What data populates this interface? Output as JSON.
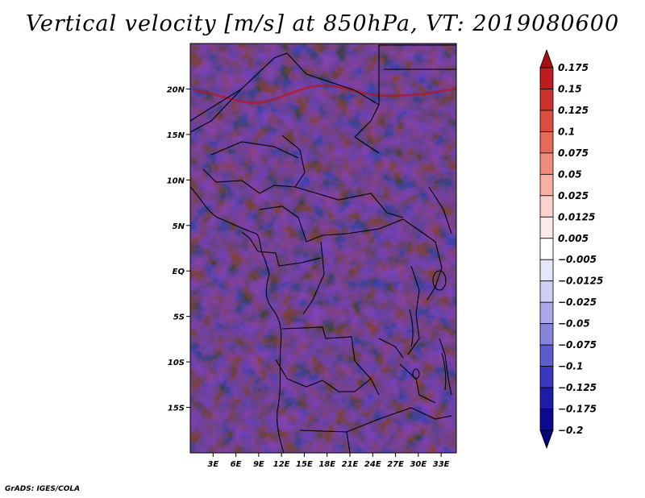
{
  "title": "Vertical velocity [m/s] at 850hPa, VT: 2019080600",
  "credit": "GrADS: IGES/COLA",
  "chart_data": {
    "type": "heatmap",
    "title": "Vertical velocity [m/s] at 850hPa, VT: 2019080600",
    "variable": "Vertical velocity",
    "units": "m/s",
    "level": "850hPa",
    "valid_time": "2019080600",
    "lon_range": [
      0,
      35
    ],
    "lat_range": [
      -20,
      25
    ],
    "lat_ticks": [
      {
        "value": 20,
        "label": "20N"
      },
      {
        "value": 15,
        "label": "15N"
      },
      {
        "value": 10,
        "label": "10N"
      },
      {
        "value": 5,
        "label": "5N"
      },
      {
        "value": 0,
        "label": "EQ"
      },
      {
        "value": -5,
        "label": "5S"
      },
      {
        "value": -10,
        "label": "10S"
      },
      {
        "value": -15,
        "label": "15S"
      }
    ],
    "lon_ticks": [
      {
        "value": 3,
        "label": "3E"
      },
      {
        "value": 6,
        "label": "6E"
      },
      {
        "value": 9,
        "label": "9E"
      },
      {
        "value": 12,
        "label": "12E"
      },
      {
        "value": 15,
        "label": "15E"
      },
      {
        "value": 18,
        "label": "18E"
      },
      {
        "value": 21,
        "label": "21E"
      },
      {
        "value": 24,
        "label": "24E"
      },
      {
        "value": 27,
        "label": "27E"
      },
      {
        "value": 30,
        "label": "30E"
      },
      {
        "value": 33,
        "label": "33E"
      }
    ],
    "colorbar": {
      "labels": [
        "0.175",
        "0.15",
        "0.125",
        "0.1",
        "0.075",
        "0.05",
        "0.025",
        "0.0125",
        "0.005",
        "−0.005",
        "−0.0125",
        "−0.025",
        "−0.05",
        "−0.075",
        "−0.1",
        "−0.125",
        "−0.175",
        "−0.2"
      ],
      "colors": [
        "#a50f15",
        "#be1c1e",
        "#d0302b",
        "#de4b3f",
        "#e66b59",
        "#ef8c7c",
        "#f6b1a4",
        "#fbd3cb",
        "#fdeae6",
        "#ffffff",
        "#e6e6fa",
        "#cfcff3",
        "#a9a9e9",
        "#8585dd",
        "#5c5cd0",
        "#3838c1",
        "#1c1cab",
        "#0a0a90",
        "#050578"
      ]
    }
  }
}
